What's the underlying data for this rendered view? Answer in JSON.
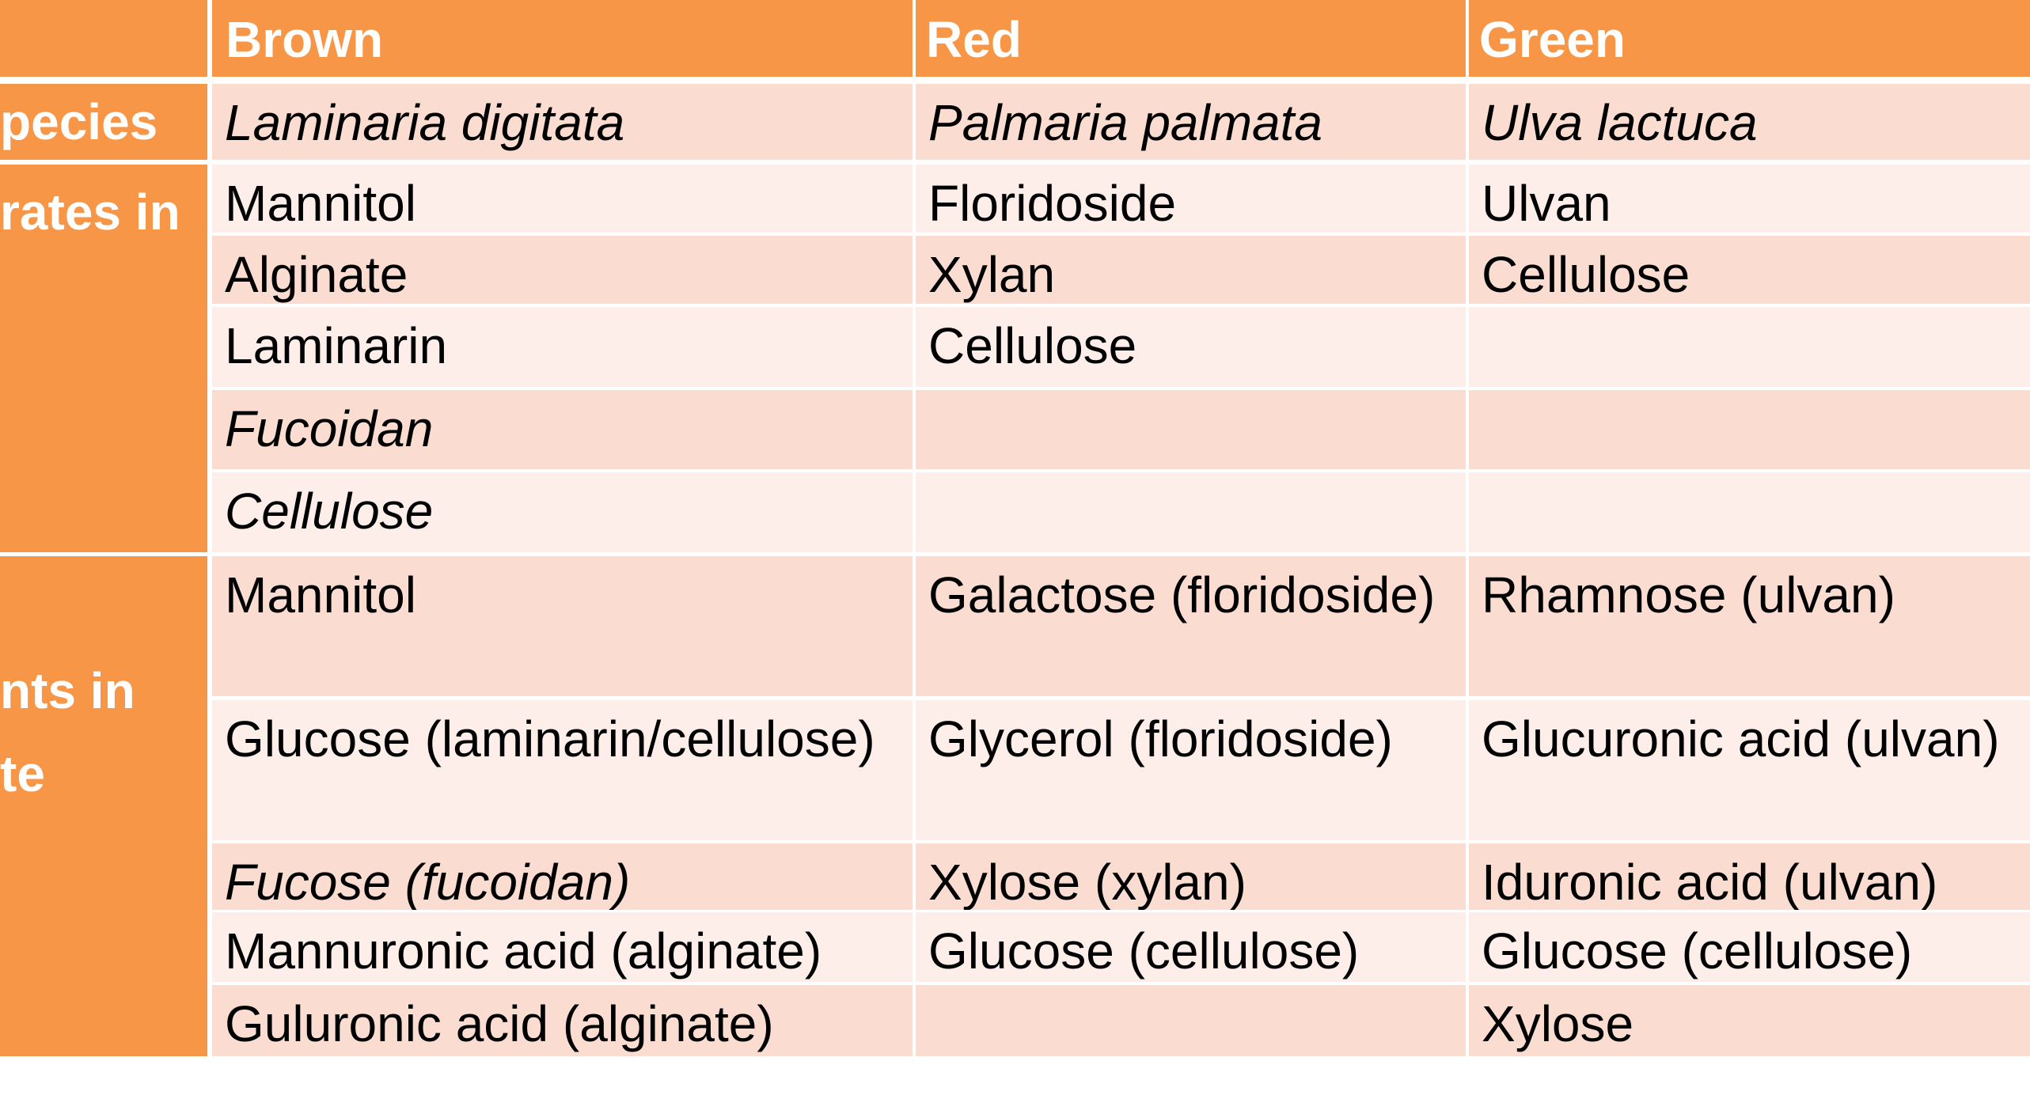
{
  "header": {
    "col_brown": "Brown",
    "col_red": "Red",
    "col_green": "Green"
  },
  "row_labels": {
    "species": "pecies",
    "carbohydrates": "rates in",
    "components_line1": "nts in",
    "components_line2": "te"
  },
  "rows": [
    {
      "brown": "Laminaria digitata",
      "red": "Palmaria palmata",
      "green": "Ulva lactuca"
    },
    {
      "brown": "Mannitol",
      "red": "Floridoside",
      "green": "Ulvan"
    },
    {
      "brown": "Alginate",
      "red": "Xylan",
      "green": "Cellulose"
    },
    {
      "brown": "Laminarin",
      "red": "Cellulose",
      "green": ""
    },
    {
      "brown": "Fucoidan",
      "red": "",
      "green": ""
    },
    {
      "brown": "Cellulose",
      "red": "",
      "green": ""
    },
    {
      "brown": "Mannitol",
      "red": "Galactose (floridoside)",
      "green": "Rhamnose (ulvan)"
    },
    {
      "brown": "Glucose (laminarin/cellulose)",
      "red": "Glycerol (floridoside)",
      "green": "Glucuronic acid (ulvan)"
    },
    {
      "brown": "Fucose (fucoidan)",
      "red": "Xylose (xylan)",
      "green": "Iduronic acid (ulvan)"
    },
    {
      "brown": "Mannuronic acid (alginate)",
      "red": "Glucose (cellulose)",
      "green": "Glucose (cellulose)"
    },
    {
      "brown": "Guluronic acid (alginate)",
      "red": "",
      "green": "Xylose"
    }
  ],
  "colors": {
    "header_orange": "#F79646",
    "row_dark": "#FBDCD0",
    "row_light": "#FDEEEA"
  }
}
